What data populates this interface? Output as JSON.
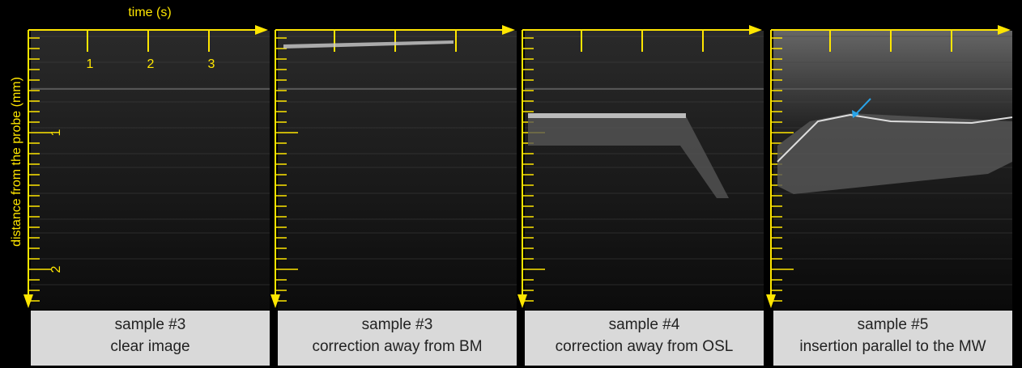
{
  "axes": {
    "x_label": "time (s)",
    "y_label": "distance from the probe (mm)",
    "x_tick_labels": [
      "1",
      "2",
      "3"
    ],
    "y_tick_labels": [
      "1",
      "2"
    ]
  },
  "panels": [
    {
      "caption": [
        "sample #3",
        "clear image"
      ]
    },
    {
      "caption": [
        "sample #3",
        "correction away from BM"
      ]
    },
    {
      "caption": [
        "sample #4",
        "correction away from OSL"
      ]
    },
    {
      "caption": [
        "sample #5",
        "insertion parallel to the MW"
      ]
    }
  ]
}
